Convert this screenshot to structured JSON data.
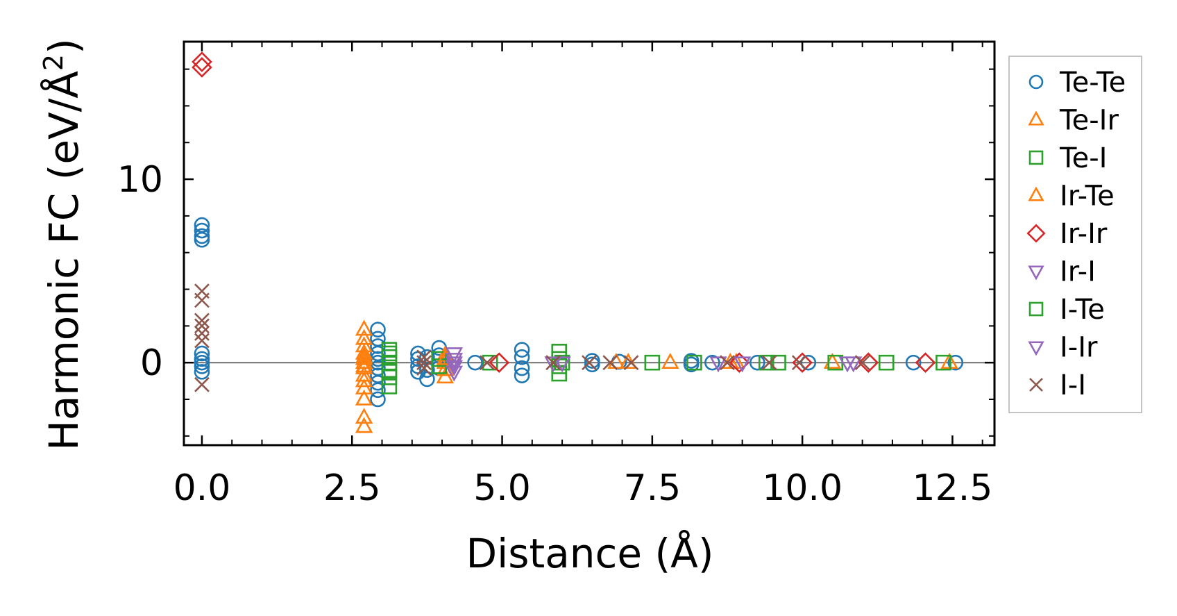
{
  "chart_data": {
    "type": "scatter",
    "xlabel": "Distance (Å)",
    "ylabel_main": "Harmonic FC (eV/Å",
    "ylabel_sup": "2",
    "ylabel_close": ")",
    "xlim": [
      -0.3,
      13.2
    ],
    "ylim": [
      -4.5,
      17.5
    ],
    "x_ticks": [
      0.0,
      2.5,
      5.0,
      7.5,
      10.0,
      12.5
    ],
    "x_tick_labels": [
      "0.0",
      "2.5",
      "5.0",
      "7.5",
      "10.0",
      "12.5"
    ],
    "y_ticks": [
      0,
      10
    ],
    "y_tick_labels": [
      "0",
      "10"
    ],
    "zero_line": true,
    "grid": false,
    "legend_position": "outside-right",
    "series": [
      {
        "name": "Te-Te",
        "marker": "circle",
        "color": "#1f77b4",
        "points": [
          [
            0,
            7.5
          ],
          [
            0,
            7.2
          ],
          [
            0,
            6.9
          ],
          [
            0,
            6.7
          ],
          [
            0,
            0.5
          ],
          [
            0,
            0.2
          ],
          [
            0,
            0
          ],
          [
            0,
            -0.2
          ],
          [
            0,
            -0.5
          ],
          [
            2.93,
            1.8
          ],
          [
            2.93,
            1.3
          ],
          [
            2.93,
            0.9
          ],
          [
            2.93,
            0.5
          ],
          [
            2.93,
            0.2
          ],
          [
            2.93,
            0
          ],
          [
            2.93,
            -0.3
          ],
          [
            2.93,
            -0.7
          ],
          [
            2.93,
            -1.1
          ],
          [
            2.93,
            -1.5
          ],
          [
            2.93,
            -2.0
          ],
          [
            3.6,
            0.5
          ],
          [
            3.6,
            0.2
          ],
          [
            3.6,
            -0.2
          ],
          [
            3.6,
            -0.5
          ],
          [
            3.75,
            0.3
          ],
          [
            3.75,
            -0.4
          ],
          [
            3.75,
            -0.9
          ],
          [
            3.95,
            0.8
          ],
          [
            3.95,
            0.4
          ],
          [
            3.95,
            -0.3
          ],
          [
            4.55,
            0
          ],
          [
            5.33,
            0.7
          ],
          [
            5.33,
            0.3
          ],
          [
            5.33,
            -0.3
          ],
          [
            5.33,
            -0.7
          ],
          [
            6.5,
            0.1
          ],
          [
            6.5,
            -0.1
          ],
          [
            6.95,
            0.05
          ],
          [
            8.15,
            0.1
          ],
          [
            8.15,
            -0.1
          ],
          [
            8.5,
            0
          ],
          [
            9.25,
            0
          ],
          [
            10.1,
            0
          ],
          [
            11.85,
            0
          ],
          [
            12.55,
            0
          ]
        ]
      },
      {
        "name": "Te-Ir",
        "marker": "triangle-up",
        "color": "#ff7f0e",
        "points": [
          [
            2.7,
            1.8
          ],
          [
            2.7,
            1.3
          ],
          [
            2.7,
            0.9
          ],
          [
            2.7,
            0.5
          ],
          [
            2.7,
            0.2
          ],
          [
            2.7,
            0
          ],
          [
            2.7,
            -0.3
          ],
          [
            2.7,
            -0.7
          ],
          [
            2.7,
            -1.0
          ],
          [
            2.7,
            -1.4
          ],
          [
            2.7,
            -2.0
          ],
          [
            2.7,
            -3.0
          ],
          [
            2.7,
            -3.5
          ],
          [
            4.05,
            0.4
          ],
          [
            4.05,
            0
          ],
          [
            4.05,
            -0.4
          ],
          [
            4.05,
            -0.8
          ],
          [
            6.9,
            0
          ],
          [
            7.8,
            0
          ],
          [
            8.9,
            0
          ],
          [
            10.5,
            0
          ]
        ]
      },
      {
        "name": "Te-I",
        "marker": "square",
        "color": "#2ca02c",
        "points": [
          [
            3.12,
            0.7
          ],
          [
            3.12,
            0.3
          ],
          [
            3.12,
            0
          ],
          [
            3.12,
            -0.4
          ],
          [
            3.12,
            -0.8
          ],
          [
            3.12,
            -1.3
          ],
          [
            3.95,
            0.2
          ],
          [
            3.95,
            -0.2
          ],
          [
            4.8,
            0
          ],
          [
            5.95,
            0.6
          ],
          [
            5.95,
            0.2
          ],
          [
            5.95,
            -0.2
          ],
          [
            5.95,
            -0.6
          ],
          [
            7.5,
            0
          ],
          [
            8.2,
            0
          ],
          [
            9.4,
            0
          ],
          [
            10.55,
            0
          ],
          [
            11.4,
            0
          ]
        ]
      },
      {
        "name": "Ir-Te",
        "marker": "triangle-up",
        "color": "#ff7f0e",
        "points": [
          [
            2.7,
            0.3
          ],
          [
            2.7,
            -0.2
          ],
          [
            4.05,
            0.2
          ],
          [
            7.1,
            0
          ],
          [
            8.8,
            0
          ],
          [
            12.45,
            0
          ]
        ]
      },
      {
        "name": "Ir-Ir",
        "marker": "diamond",
        "color": "#d62728",
        "points": [
          [
            0,
            16.4
          ],
          [
            0,
            16.1
          ],
          [
            4.95,
            0
          ],
          [
            8.95,
            0
          ],
          [
            10.0,
            0
          ],
          [
            11.1,
            0
          ],
          [
            12.05,
            0
          ]
        ]
      },
      {
        "name": "Ir-I",
        "marker": "triangle-down",
        "color": "#9467bd",
        "points": [
          [
            4.2,
            0.5
          ],
          [
            4.2,
            0.2
          ],
          [
            4.2,
            -0.2
          ],
          [
            4.2,
            -0.5
          ],
          [
            5.85,
            0
          ],
          [
            8.6,
            0
          ],
          [
            10.75,
            0
          ]
        ]
      },
      {
        "name": "I-Te",
        "marker": "square",
        "color": "#2ca02c",
        "points": [
          [
            3.12,
            0.5
          ],
          [
            3.12,
            -0.5
          ],
          [
            6.0,
            0
          ],
          [
            9.6,
            0
          ],
          [
            12.35,
            0
          ]
        ]
      },
      {
        "name": "I-Ir",
        "marker": "triangle-down",
        "color": "#9467bd",
        "points": [
          [
            4.2,
            0
          ],
          [
            6.0,
            0
          ],
          [
            9.0,
            0
          ],
          [
            10.85,
            0
          ]
        ]
      },
      {
        "name": "I-I",
        "marker": "x",
        "color": "#8c564b",
        "points": [
          [
            0,
            3.9
          ],
          [
            0,
            3.4
          ],
          [
            0,
            2.3
          ],
          [
            0,
            2.0
          ],
          [
            0,
            1.6
          ],
          [
            0,
            1.2
          ],
          [
            0,
            -1.2
          ],
          [
            3.7,
            0.3
          ],
          [
            3.7,
            0
          ],
          [
            3.7,
            -0.3
          ],
          [
            4.75,
            0
          ],
          [
            5.85,
            0
          ],
          [
            6.45,
            0
          ],
          [
            6.8,
            0
          ],
          [
            7.15,
            0
          ],
          [
            8.75,
            0
          ],
          [
            9.45,
            0
          ],
          [
            9.95,
            0
          ],
          [
            11.0,
            0
          ]
        ]
      }
    ]
  }
}
